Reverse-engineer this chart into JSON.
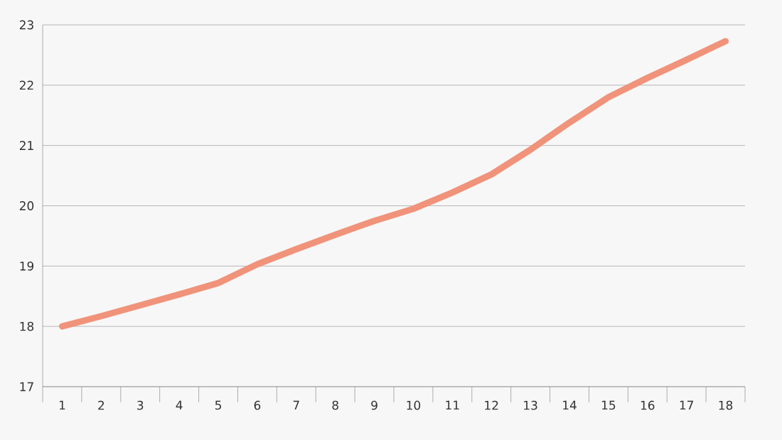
{
  "chart_data": {
    "type": "line",
    "categories": [
      "1",
      "2",
      "3",
      "4",
      "5",
      "6",
      "7",
      "8",
      "9",
      "10",
      "11",
      "12",
      "13",
      "14",
      "15",
      "16",
      "17",
      "18"
    ],
    "values": [
      18.0,
      18.17,
      18.35,
      18.53,
      18.72,
      19.03,
      19.28,
      19.52,
      19.75,
      19.95,
      20.22,
      20.52,
      20.93,
      21.38,
      21.8,
      22.12,
      22.42,
      22.73
    ],
    "color": "#f0937a",
    "ylim": [
      17,
      23
    ],
    "yticks": [
      17,
      18,
      19,
      20,
      21,
      22,
      23
    ],
    "grid": "y",
    "marker": "none",
    "line_style": "solid"
  }
}
